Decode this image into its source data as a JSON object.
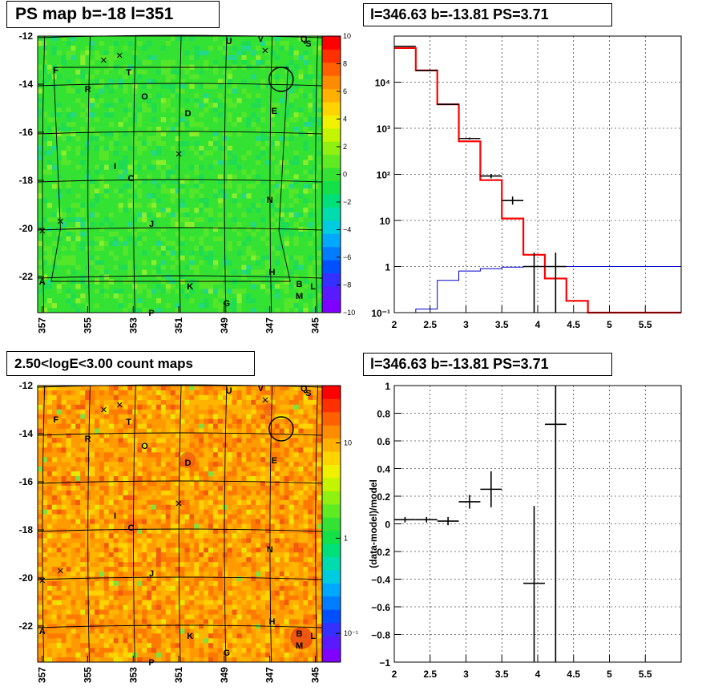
{
  "chart_data": [
    {
      "type": "heatmap",
      "title": "PS map b=-18 l=351",
      "x_ticks": [
        "357",
        "355",
        "353",
        "351",
        "349",
        "347",
        "345"
      ],
      "y_ticks": [
        "-12",
        "-14",
        "-16",
        "-18",
        "-20",
        "-22"
      ],
      "xlim": [
        357.2,
        344.7
      ],
      "ylim": [
        -23.5,
        -12
      ],
      "colorbar_ticks": [
        "10",
        "8",
        "6",
        "4",
        "2",
        "0",
        "−2",
        "−4",
        "−6",
        "−8",
        "−10"
      ],
      "colorbar_range": [
        -10,
        10
      ],
      "dominant_color": "#33e233",
      "source_labels": [
        {
          "t": "F",
          "l": 356.4,
          "b": -13.4
        },
        {
          "t": "T",
          "l": 353.2,
          "b": -13.5
        },
        {
          "t": "R",
          "l": 355.0,
          "b": -14.2
        },
        {
          "t": "O",
          "l": 352.5,
          "b": -14.5
        },
        {
          "t": "D",
          "l": 350.6,
          "b": -15.2
        },
        {
          "t": "E",
          "l": 346.8,
          "b": -15.1
        },
        {
          "t": "U",
          "l": 348.8,
          "b": -12.2
        },
        {
          "t": "V",
          "l": 347.4,
          "b": -12.1
        },
        {
          "t": "Q",
          "l": 345.5,
          "b": -12.1
        },
        {
          "t": "S",
          "l": 345.3,
          "b": -12.3
        },
        {
          "t": "I",
          "l": 353.8,
          "b": -17.4
        },
        {
          "t": "C",
          "l": 353.1,
          "b": -17.9
        },
        {
          "t": "N",
          "l": 347.0,
          "b": -18.8
        },
        {
          "t": "J",
          "l": 352.2,
          "b": -19.8
        },
        {
          "t": "H",
          "l": 346.9,
          "b": -21.8
        },
        {
          "t": "A",
          "l": 357.0,
          "b": -22.2
        },
        {
          "t": "K",
          "l": 350.5,
          "b": -22.4
        },
        {
          "t": "B",
          "l": 345.7,
          "b": -22.3
        },
        {
          "t": "L",
          "l": 345.1,
          "b": -22.4
        },
        {
          "t": "M",
          "l": 345.7,
          "b": -22.8
        },
        {
          "t": "G",
          "l": 348.9,
          "b": -23.1
        },
        {
          "t": "P",
          "l": 352.2,
          "b": -23.5
        }
      ],
      "crosses": [
        {
          "l": 354.3,
          "b": -13.0
        },
        {
          "l": 353.6,
          "b": -12.8
        },
        {
          "l": 347.2,
          "b": -12.6
        },
        {
          "l": 351.0,
          "b": -16.9
        },
        {
          "l": 356.2,
          "b": -19.7
        },
        {
          "l": 357.0,
          "b": -20.1
        }
      ],
      "circle": {
        "l": 346.5,
        "b": -13.8
      }
    },
    {
      "type": "line",
      "title": "l=346.63 b=-13.81 PS=3.71",
      "xlim": [
        2,
        6
      ],
      "ylim": [
        0.1,
        100000
      ],
      "yscale": "log",
      "x_ticks": [
        "2",
        "2.5",
        "3",
        "3.5",
        "4",
        "4.5",
        "5",
        "5.5"
      ],
      "y_ticks": [
        "10⁻¹",
        "1",
        "10",
        "10²",
        "10³",
        "10⁴"
      ],
      "grid": true,
      "series": [
        {
          "color": "#ff0000",
          "edges": [
            2,
            2.3,
            2.6,
            2.9,
            3.2,
            3.5,
            3.8,
            4.1,
            4.4,
            4.7,
            6
          ],
          "values": [
            55000,
            18000,
            3300,
            520,
            75,
            11,
            1.8,
            0.55,
            0.18,
            0.1
          ]
        },
        {
          "color": "#0000cc",
          "edges": [
            2,
            2.3,
            2.6,
            2.9,
            3.2,
            3.5,
            3.8,
            4.1,
            4.4,
            6
          ],
          "values": [
            0.09,
            0.12,
            0.5,
            0.8,
            0.9,
            0.97,
            1.0,
            1.0,
            1.0
          ]
        }
      ],
      "points": [
        {
          "x": 2.15,
          "y": 60000,
          "xerr": 0.15,
          "lo": 59000,
          "hi": 61000
        },
        {
          "x": 2.45,
          "y": 18000,
          "xerr": 0.15,
          "lo": 17700,
          "hi": 18300
        },
        {
          "x": 2.75,
          "y": 3300,
          "xerr": 0.15,
          "lo": 3200,
          "hi": 3400
        },
        {
          "x": 3.05,
          "y": 600,
          "xerr": 0.15,
          "lo": 570,
          "hi": 630
        },
        {
          "x": 3.35,
          "y": 92,
          "xerr": 0.15,
          "lo": 82,
          "hi": 102
        },
        {
          "x": 3.65,
          "y": 27,
          "xerr": 0.15,
          "lo": 22,
          "hi": 33
        },
        {
          "x": 3.95,
          "y": 1.0,
          "xerr": 0.15,
          "lo": 0.1,
          "hi": 2.0
        },
        {
          "x": 4.25,
          "y": 1.0,
          "xerr": 0.15,
          "lo": 0.1,
          "hi": 2.0
        }
      ]
    },
    {
      "type": "heatmap",
      "title": "2.50<logE<3.00 count maps",
      "x_ticks": [
        "357",
        "355",
        "353",
        "351",
        "349",
        "347",
        "345"
      ],
      "y_ticks": [
        "-12",
        "-14",
        "-16",
        "-18",
        "-20",
        "-22"
      ],
      "xlim": [
        357.2,
        344.7
      ],
      "ylim": [
        -23.5,
        -12
      ],
      "colorbar_ticks": [
        {
          "t": "10",
          "v": 10
        },
        {
          "t": "1",
          "v": 1
        },
        {
          "t": "10⁻¹",
          "v": 0.1
        }
      ],
      "colorbar_range": [
        0.05,
        40
      ],
      "dominant_color": "#ff9a00"
    },
    {
      "type": "scatter",
      "title": "l=346.63 b=-13.81 PS=3.71",
      "ylabel": "(data-model)/model",
      "xlim": [
        2,
        6
      ],
      "ylim": [
        -1,
        1
      ],
      "x_ticks": [
        "2",
        "2.5",
        "3",
        "3.5",
        "4",
        "4.5",
        "5",
        "5.5"
      ],
      "y_ticks": [
        "−1",
        "−0.8",
        "−0.6",
        "−0.4",
        "−0.2",
        "0",
        "0.2",
        "0.4",
        "0.6",
        "0.8",
        "1"
      ],
      "grid": true,
      "points": [
        {
          "x": 2.15,
          "y": 0.03,
          "xerr": 0.15,
          "lo": 0.01,
          "hi": 0.05
        },
        {
          "x": 2.45,
          "y": 0.03,
          "xerr": 0.15,
          "lo": 0.01,
          "hi": 0.05
        },
        {
          "x": 2.75,
          "y": 0.02,
          "xerr": 0.15,
          "lo": -0.01,
          "hi": 0.05
        },
        {
          "x": 3.05,
          "y": 0.16,
          "xerr": 0.15,
          "lo": 0.11,
          "hi": 0.21
        },
        {
          "x": 3.35,
          "y": 0.25,
          "xerr": 0.15,
          "lo": 0.12,
          "hi": 0.38
        },
        {
          "x": 3.95,
          "y": -0.43,
          "xerr": 0.15,
          "lo": -1.0,
          "hi": 0.13
        },
        {
          "x": 4.25,
          "y": 0.72,
          "xerr": 0.15,
          "lo": -1.0,
          "hi": 1.0
        }
      ]
    }
  ]
}
